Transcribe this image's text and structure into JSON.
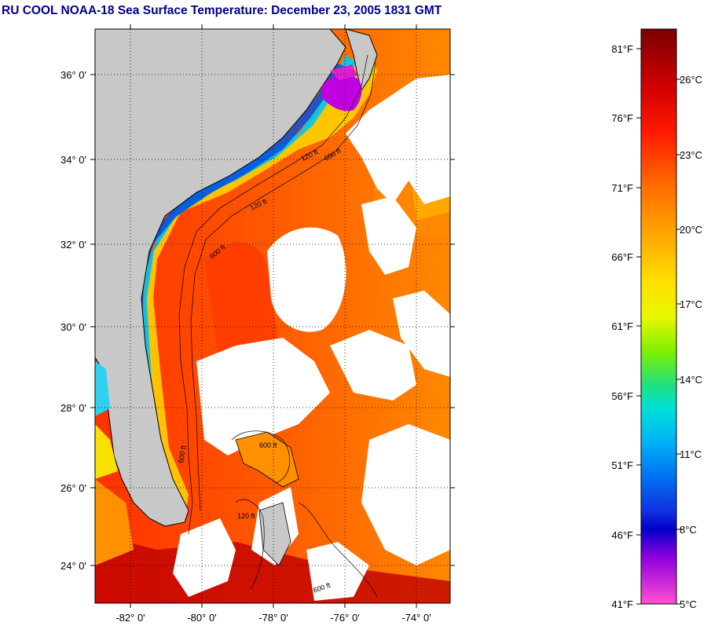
{
  "title": "RU COOL  NOAA-18  Sea Surface Temperature:  December 23, 2005 1831 GMT",
  "map": {
    "lat_labels": [
      "36° 0'",
      "34° 0'",
      "32° 0'",
      "30° 0'",
      "28° 0'",
      "26° 0'",
      "24° 0'"
    ],
    "lon_labels": [
      "-82° 0'",
      "-80° 0'",
      "-78° 0'",
      "-76° 0'",
      "-74° 0'"
    ],
    "contour_labels": [
      "600 ft",
      "120 ft",
      "600 ft",
      "120 ft",
      "600 ft",
      "600 ft",
      "120 ft",
      "600 ft"
    ]
  },
  "colorbar": {
    "fahrenheit": [
      "81°F",
      "76°F",
      "71°F",
      "66°F",
      "61°F",
      "56°F",
      "51°F",
      "46°F",
      "41°F"
    ],
    "celsius": [
      "26°C",
      "23°C",
      "20°C",
      "17°C",
      "14°C",
      "11°C",
      "8°C",
      "5°C"
    ],
    "colors": [
      "#7a0000",
      "#c80000",
      "#ff1a00",
      "#ff6400",
      "#ffa000",
      "#ffd000",
      "#f4f400",
      "#a0f000",
      "#30e060",
      "#00e0c8",
      "#00b8f0",
      "#0070f0",
      "#1030e0",
      "#0000d0",
      "#8000e0",
      "#e000e0",
      "#ff50d0"
    ]
  }
}
